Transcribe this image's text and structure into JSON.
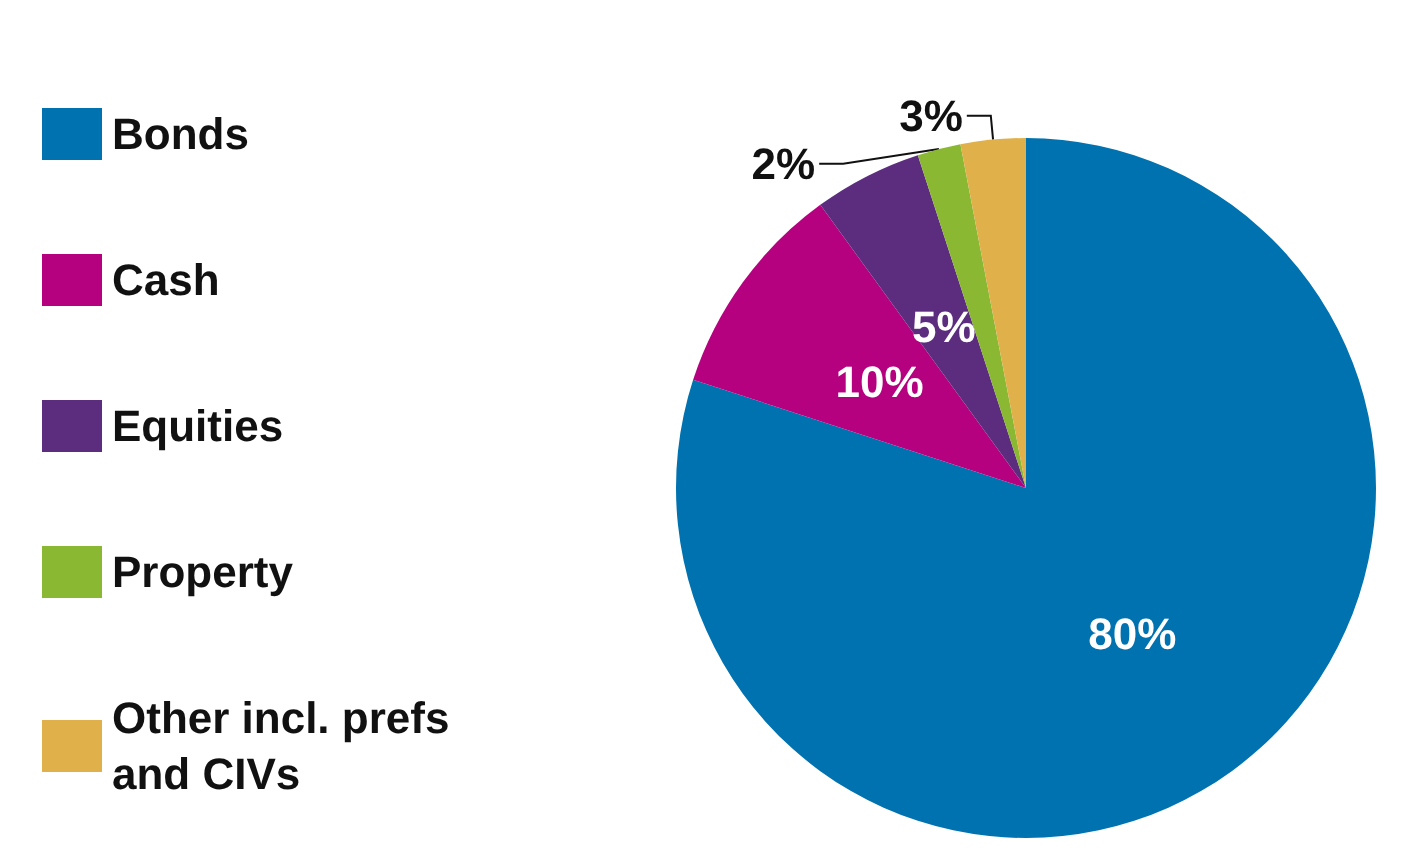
{
  "chart_data": {
    "type": "pie",
    "categories": [
      "Bonds",
      "Cash",
      "Equities",
      "Property",
      "Other incl. prefs and CIVs"
    ],
    "values": [
      80,
      10,
      5,
      2,
      3
    ],
    "colors": [
      "#0072b0",
      "#b5007f",
      "#5c2d7f",
      "#8ab833",
      "#e0b04a"
    ],
    "value_labels": [
      "80%",
      "10%",
      "5%",
      "2%",
      "3%"
    ],
    "legend": "left"
  }
}
